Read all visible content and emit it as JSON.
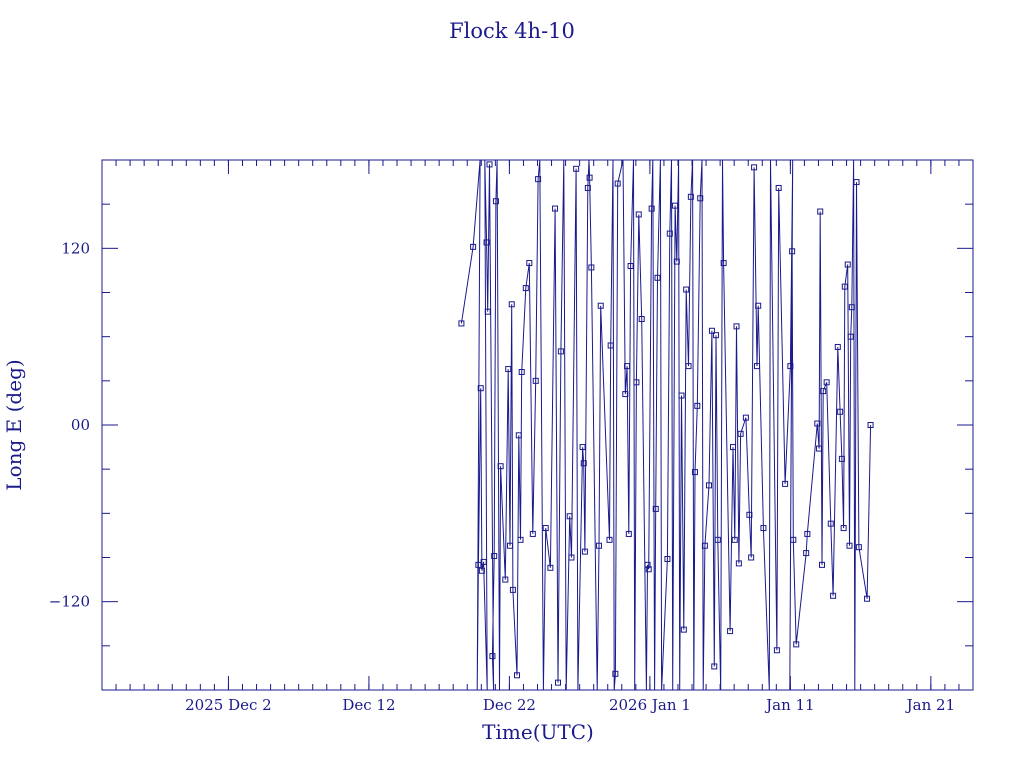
{
  "chart_data": {
    "type": "line",
    "title": "Flock 4h-10",
    "xlabel": "Time(UTC)",
    "ylabel": "Long E (deg)",
    "ylim": [
      -180,
      180
    ],
    "xlim": [
      "2025-11-23",
      "2026-01-24"
    ],
    "y_ticks": [
      {
        "value": 120,
        "label": "120"
      },
      {
        "value": 0,
        "label": "00"
      },
      {
        "value": -120,
        "label": "−120"
      }
    ],
    "x_ticks": [
      {
        "value": "2025-12-02",
        "label": "2025 Dec  2"
      },
      {
        "value": "2025-12-12",
        "label": "Dec 12"
      },
      {
        "value": "2025-12-22",
        "label": "Dec 22"
      },
      {
        "value": "2026-01-01",
        "label": "2026 Jan  1"
      },
      {
        "value": "2026-01-11",
        "label": "Jan 11"
      },
      {
        "value": "2026-01-21",
        "label": "Jan 21"
      }
    ],
    "marker": "square",
    "line_color": "#1a1a8c",
    "series": [
      {
        "points": [
          [
            "2025-12-18T14:00",
            69
          ],
          [
            "2025-12-19T10:00",
            121
          ],
          [
            "2025-12-19T22:00",
            180
          ],
          [
            "2025-12-19T17:00",
            -180
          ],
          [
            "2025-12-19T19:00",
            -95
          ],
          [
            "2025-12-19T23:00",
            25
          ],
          [
            "2025-12-20T01:00",
            -99
          ],
          [
            "2025-12-20T04:00",
            -93
          ],
          [
            "2025-12-20T10:00",
            -180
          ],
          [
            "2025-12-20T06:00",
            180
          ],
          [
            "2025-12-20T09:00",
            124
          ],
          [
            "2025-12-20T11:00",
            77
          ],
          [
            "2025-12-20T14:00",
            177
          ],
          [
            "2025-12-20T21:00",
            -180
          ],
          [
            "2025-12-20T19:00",
            -157
          ],
          [
            "2025-12-20T22:00",
            -89
          ],
          [
            "2025-12-21T01:00",
            152
          ],
          [
            "2025-12-21T03:00",
            180
          ],
          [
            "2025-12-21T07:00",
            -180
          ],
          [
            "2025-12-21T09:00",
            -28
          ],
          [
            "2025-12-21T17:00",
            -105
          ],
          [
            "2025-12-21T22:00",
            38
          ],
          [
            "2025-12-22T01:00",
            -82
          ],
          [
            "2025-12-22T04:00",
            82
          ],
          [
            "2025-12-22T06:00",
            -112
          ],
          [
            "2025-12-22T13:00",
            -170
          ],
          [
            "2025-12-22T16:00",
            -7
          ],
          [
            "2025-12-22T19:00",
            -78
          ],
          [
            "2025-12-22T21:00",
            36
          ],
          [
            "2025-12-23T04:00",
            93
          ],
          [
            "2025-12-23T10:00",
            110
          ],
          [
            "2025-12-23T16:00",
            -74
          ],
          [
            "2025-12-23T21:00",
            30
          ],
          [
            "2025-12-24T01:00",
            167
          ],
          [
            "2025-12-24T04:00",
            180
          ],
          [
            "2025-12-24T10:00",
            -180
          ],
          [
            "2025-12-24T14:00",
            -70
          ],
          [
            "2025-12-24T22:00",
            -97
          ],
          [
            "2025-12-25T06:00",
            147
          ],
          [
            "2025-12-25T11:00",
            -175
          ],
          [
            "2025-12-25T16:00",
            50
          ],
          [
            "2025-12-25T21:00",
            180
          ],
          [
            "2025-12-26T01:00",
            -180
          ],
          [
            "2025-12-26T07:00",
            -62
          ],
          [
            "2025-12-26T10:00",
            -90
          ],
          [
            "2025-12-26T18:00",
            174
          ],
          [
            "2025-12-26T21:00",
            -180
          ],
          [
            "2025-12-27T05:00",
            -15
          ],
          [
            "2025-12-27T07:00",
            -26
          ],
          [
            "2025-12-27T09:00",
            -86
          ],
          [
            "2025-12-27T14:00",
            161
          ],
          [
            "2025-12-27T16:00",
            180
          ],
          [
            "2025-12-27T17:00",
            168
          ],
          [
            "2025-12-27T20:00",
            107
          ],
          [
            "2025-12-28T06:00",
            -180
          ],
          [
            "2025-12-28T09:00",
            -82
          ],
          [
            "2025-12-28T12:00",
            81
          ],
          [
            "2025-12-29T03:00",
            -78
          ],
          [
            "2025-12-29T05:00",
            54
          ],
          [
            "2025-12-29T09:00",
            180
          ],
          [
            "2025-12-29T11:00",
            -180
          ],
          [
            "2025-12-29T13:00",
            -169
          ],
          [
            "2025-12-29T17:00",
            164
          ],
          [
            "2025-12-30T02:00",
            180
          ],
          [
            "2025-12-30T06:00",
            21
          ],
          [
            "2025-12-30T09:00",
            40
          ],
          [
            "2025-12-30T12:00",
            -74
          ],
          [
            "2025-12-30T15:00",
            108
          ],
          [
            "2025-12-30T20:00",
            180
          ],
          [
            "2025-12-30T22:00",
            -180
          ],
          [
            "2025-12-31T01:00",
            29
          ],
          [
            "2025-12-31T05:00",
            143
          ],
          [
            "2025-12-31T10:00",
            72
          ],
          [
            "2025-12-31T18:00",
            -180
          ],
          [
            "2025-12-31T20:00",
            -95
          ],
          [
            "2025-12-31T22:00",
            -98
          ],
          [
            "2026-01-01T03:00",
            147
          ],
          [
            "2026-01-01T05:00",
            180
          ],
          [
            "2026-01-01T08:00",
            -180
          ],
          [
            "2026-01-01T10:00",
            -57
          ],
          [
            "2026-01-01T13:00",
            100
          ],
          [
            "2026-01-01T18:00",
            180
          ],
          [
            "2026-01-01T20:00",
            -180
          ],
          [
            "2026-01-02T06:00",
            -91
          ],
          [
            "2026-01-02T10:00",
            130
          ],
          [
            "2026-01-02T13:00",
            180
          ],
          [
            "2026-01-02T15:00",
            -180
          ],
          [
            "2026-01-02T19:00",
            149
          ],
          [
            "2026-01-02T22:00",
            111
          ],
          [
            "2026-01-03T01:00",
            180
          ],
          [
            "2026-01-03T03:00",
            -180
          ],
          [
            "2026-01-03T06:00",
            20
          ],
          [
            "2026-01-03T10:00",
            -139
          ],
          [
            "2026-01-03T14:00",
            92
          ],
          [
            "2026-01-03T18:00",
            40
          ],
          [
            "2026-01-03T22:00",
            155
          ],
          [
            "2026-01-04T01:00",
            180
          ],
          [
            "2026-01-04T03:00",
            -180
          ],
          [
            "2026-01-04T05:00",
            -32
          ],
          [
            "2026-01-04T09:00",
            13
          ],
          [
            "2026-01-04T14:00",
            154
          ],
          [
            "2026-01-04T17:00",
            180
          ],
          [
            "2026-01-04T19:00",
            -180
          ],
          [
            "2026-01-04T22:00",
            -82
          ],
          [
            "2026-01-05T05:00",
            -41
          ],
          [
            "2026-01-05T10:00",
            64
          ],
          [
            "2026-01-05T14:00",
            -164
          ],
          [
            "2026-01-05T17:00",
            61
          ],
          [
            "2026-01-05T20:00",
            -78
          ],
          [
            "2026-01-06T01:00",
            -180
          ],
          [
            "2026-01-06T04:00",
            180
          ],
          [
            "2026-01-06T06:00",
            110
          ],
          [
            "2026-01-06T17:00",
            -140
          ],
          [
            "2026-01-06T22:00",
            -15
          ],
          [
            "2026-01-07T01:00",
            -78
          ],
          [
            "2026-01-07T04:00",
            67
          ],
          [
            "2026-01-07T08:00",
            -94
          ],
          [
            "2026-01-07T11:00",
            -6
          ],
          [
            "2026-01-07T20:00",
            5
          ],
          [
            "2026-01-08T02:00",
            -61
          ],
          [
            "2026-01-08T05:00",
            -90
          ],
          [
            "2026-01-08T10:00",
            175
          ],
          [
            "2026-01-08T15:00",
            40
          ],
          [
            "2026-01-08T17:00",
            81
          ],
          [
            "2026-01-09T02:00",
            -70
          ],
          [
            "2026-01-09T12:00",
            -180
          ],
          [
            "2026-01-09T14:00",
            180
          ],
          [
            "2026-01-10T01:00",
            -153
          ],
          [
            "2026-01-10T04:00",
            161
          ],
          [
            "2026-01-10T15:00",
            -40
          ],
          [
            "2026-01-11T00:00",
            40
          ],
          [
            "2026-01-11T04:00",
            180
          ],
          [
            "2026-01-10T23:00",
            -180
          ],
          [
            "2026-01-11T03:00",
            118
          ],
          [
            "2026-01-11T05:00",
            -78
          ],
          [
            "2026-01-11T10:00",
            -149
          ],
          [
            "2026-01-12T03:00",
            -87
          ],
          [
            "2026-01-12T05:00",
            -74
          ],
          [
            "2026-01-12T22:00",
            1
          ],
          [
            "2026-01-13T01:00",
            -16
          ],
          [
            "2026-01-13T03:00",
            145
          ],
          [
            "2026-01-13T06:00",
            -95
          ],
          [
            "2026-01-13T08:00",
            23
          ],
          [
            "2026-01-13T14:00",
            29
          ],
          [
            "2026-01-13T21:00",
            -67
          ],
          [
            "2026-01-14T01:00",
            -116
          ],
          [
            "2026-01-14T09:00",
            53
          ],
          [
            "2026-01-14T13:00",
            9
          ],
          [
            "2026-01-14T16:00",
            -23
          ],
          [
            "2026-01-14T19:00",
            -70
          ],
          [
            "2026-01-14T21:00",
            94
          ],
          [
            "2026-01-15T02:00",
            109
          ],
          [
            "2026-01-15T05:00",
            -82
          ],
          [
            "2026-01-15T07:00",
            60
          ],
          [
            "2026-01-15T09:00",
            80
          ],
          [
            "2026-01-15T12:00",
            180
          ],
          [
            "2026-01-15T14:00",
            -180
          ],
          [
            "2026-01-15T17:00",
            165
          ],
          [
            "2026-01-15T21:00",
            -83
          ],
          [
            "2026-01-16T11:00",
            -118
          ],
          [
            "2026-01-16T17:00",
            0
          ]
        ]
      }
    ]
  }
}
